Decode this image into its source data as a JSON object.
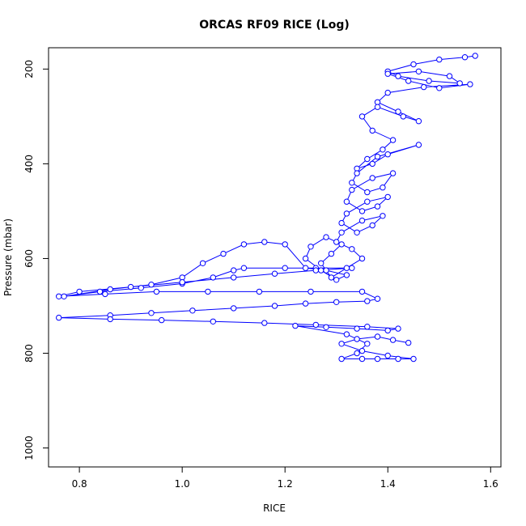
{
  "chart_data": {
    "type": "scatter",
    "title": "ORCAS RF09 RICE (Log)",
    "xlabel": "RICE",
    "ylabel": "Pressure (mbar)",
    "xlim": [
      0.74,
      1.62
    ],
    "ylim": [
      1040,
      155
    ],
    "y_reversed": true,
    "x_ticks": [
      "0.8",
      "1.0",
      "1.2",
      "1.4",
      "1.6"
    ],
    "y_ticks": [
      "200",
      "400",
      "600",
      "800",
      "1000"
    ],
    "marker": "open-circle",
    "connected": true,
    "color": "#0000ff",
    "series": [
      {
        "name": "",
        "x": [
          1.57,
          1.55,
          1.5,
          1.45,
          1.4,
          1.42,
          1.48,
          1.54,
          1.52,
          1.46,
          1.4,
          1.44,
          1.5,
          1.56,
          1.47,
          1.4,
          1.38,
          1.42,
          1.46,
          1.43,
          1.38,
          1.35,
          1.37,
          1.41,
          1.39,
          1.36,
          1.34,
          1.37,
          1.4,
          1.46,
          1.38,
          1.34,
          1.33,
          1.36,
          1.39,
          1.41,
          1.37,
          1.33,
          1.32,
          1.35,
          1.38,
          1.4,
          1.36,
          1.32,
          1.31,
          1.34,
          1.37,
          1.39,
          1.35,
          1.31,
          1.3,
          1.33,
          1.35,
          1.32,
          1.29,
          1.27,
          1.29,
          1.31,
          1.28,
          1.25,
          1.24,
          1.27,
          1.3,
          1.32,
          1.28,
          1.24,
          1.2,
          1.16,
          1.12,
          1.08,
          1.04,
          1.0,
          0.94,
          0.86,
          0.77,
          0.84,
          0.92,
          1.0,
          1.06,
          1.1,
          1.12,
          1.2,
          1.26,
          1.33,
          1.26,
          1.18,
          1.1,
          1.0,
          0.9,
          0.8,
          0.76,
          0.85,
          0.95,
          1.05,
          1.15,
          1.25,
          1.35,
          1.38,
          1.36,
          1.3,
          1.24,
          1.18,
          1.1,
          1.02,
          0.94,
          0.86,
          0.76,
          0.86,
          0.96,
          1.06,
          1.16,
          1.26,
          1.36,
          1.42,
          1.4,
          1.34,
          1.28,
          1.22,
          1.32,
          1.36,
          1.34,
          1.31,
          1.35,
          1.38,
          1.42,
          1.45,
          1.4,
          1.35,
          1.31,
          1.34,
          1.38,
          1.41,
          1.44
        ],
        "y": [
          172,
          175,
          180,
          190,
          205,
          215,
          225,
          230,
          215,
          205,
          210,
          225,
          240,
          232,
          238,
          250,
          270,
          290,
          310,
          300,
          280,
          300,
          330,
          350,
          370,
          390,
          410,
          400,
          380,
          360,
          385,
          420,
          440,
          460,
          450,
          420,
          430,
          455,
          480,
          500,
          490,
          470,
          480,
          505,
          525,
          545,
          530,
          510,
          520,
          545,
          565,
          580,
          600,
          620,
          640,
          610,
          590,
          570,
          555,
          575,
          600,
          625,
          645,
          635,
          625,
          620,
          570,
          565,
          570,
          590,
          610,
          640,
          655,
          665,
          680,
          670,
          662,
          653,
          640,
          625,
          620,
          620,
          620,
          620,
          625,
          632,
          640,
          650,
          660,
          670,
          680,
          675,
          670,
          670,
          670,
          670,
          670,
          685,
          690,
          692,
          695,
          700,
          705,
          710,
          715,
          720,
          725,
          728,
          730,
          733,
          736,
          740,
          744,
          748,
          752,
          748,
          745,
          742,
          760,
          780,
          800,
          812,
          812,
          812,
          812,
          812,
          805,
          795,
          780,
          770,
          765,
          772,
          778
        ]
      }
    ]
  }
}
